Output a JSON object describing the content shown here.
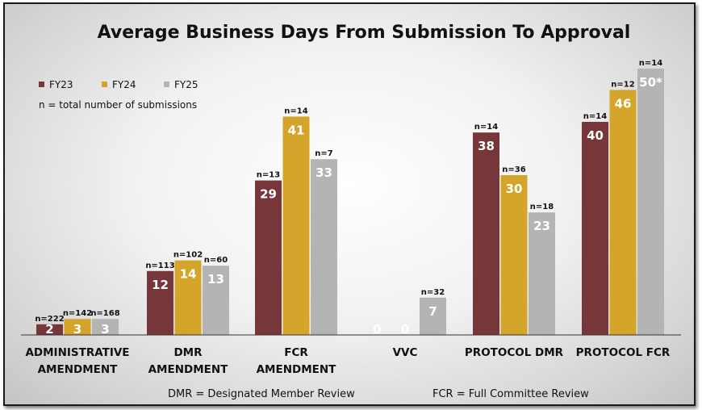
{
  "chart_data": {
    "type": "bar",
    "title": "Average Business Days From Submission To Approval",
    "note": "n = total number of submissions",
    "categories": [
      [
        "ADMINISTRATIVE",
        "AMENDMENT"
      ],
      [
        "DMR",
        "AMENDMENT"
      ],
      [
        "FCR",
        "AMENDMENT"
      ],
      [
        "VVC"
      ],
      [
        "PROTOCOL DMR"
      ],
      [
        "PROTOCOL FCR"
      ]
    ],
    "series": [
      {
        "name": "FY23",
        "color": "#77363a",
        "values": [
          2,
          12,
          29,
          0,
          38,
          40
        ],
        "labels": [
          "2",
          "12",
          "29",
          "0",
          "38",
          "40"
        ],
        "n": [
          "n=222",
          "n=113",
          "n=13",
          "",
          "n=14",
          "n=14"
        ]
      },
      {
        "name": "FY24",
        "color": "#d4a52a",
        "values": [
          3,
          14,
          41,
          0,
          30,
          46
        ],
        "labels": [
          "3",
          "14",
          "41",
          "0",
          "30",
          "46"
        ],
        "n": [
          "n=142",
          "n=102",
          "n=14",
          "",
          "n=36",
          "n=12"
        ]
      },
      {
        "name": "FY25",
        "color": "#b4b4b4",
        "values": [
          3,
          13,
          33,
          7,
          23,
          50
        ],
        "labels": [
          "3",
          "13",
          "33",
          "7",
          "23",
          "50*"
        ],
        "n": [
          "n=168",
          "n=60",
          "n=7",
          "n=32",
          "n=18",
          "n=14"
        ]
      }
    ],
    "ylim": [
      0,
      51
    ],
    "grid": false,
    "legend": "top-left"
  },
  "footnotes": {
    "dmr": "DMR = Designated Member Review",
    "fcr": "FCR = Full Committee Review"
  }
}
